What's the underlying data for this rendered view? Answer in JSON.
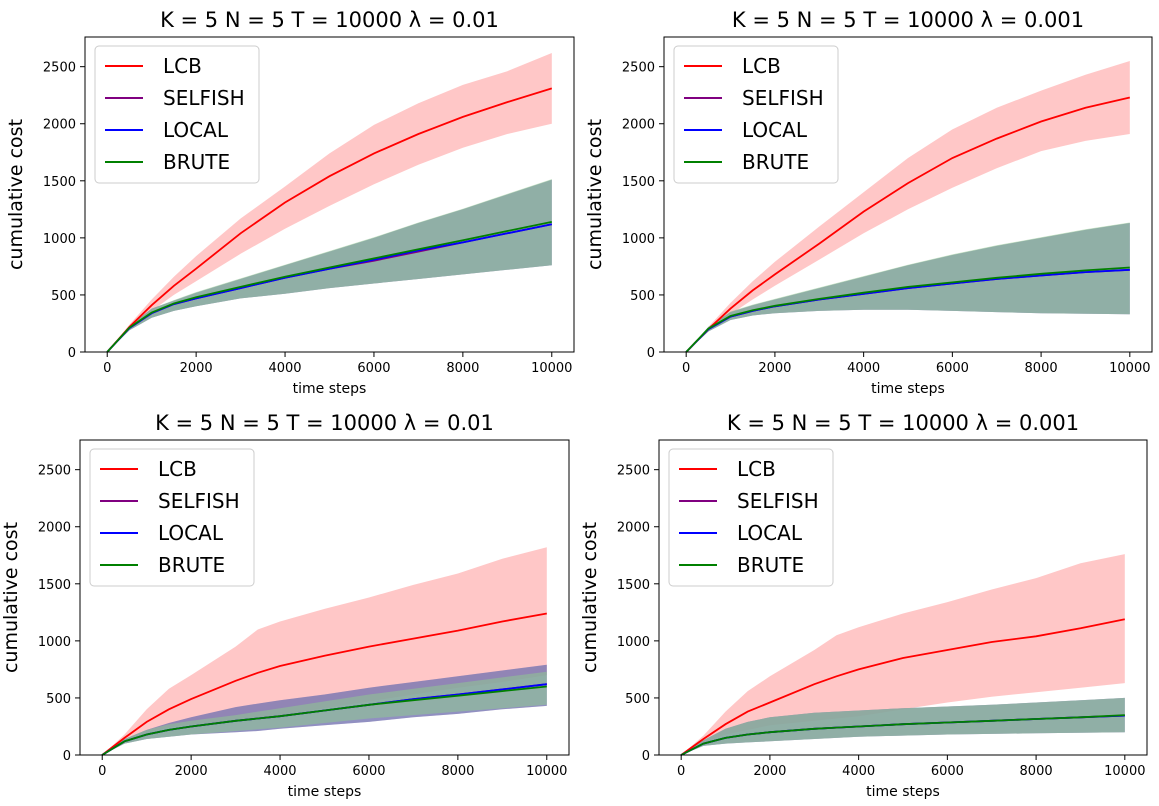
{
  "figure": {
    "background": "#ffffff"
  },
  "series_styles": {
    "LCB": {
      "color": "#ff0000",
      "band": "#ff9999"
    },
    "SELFISH": {
      "color": "#800080",
      "band": "#b48ad6"
    },
    "LOCAL": {
      "color": "#0000ff",
      "band": "#5a6aa0"
    },
    "BRUTE": {
      "color": "#008000",
      "band": "#8fc98f"
    }
  },
  "chart_data": [
    {
      "type": "line",
      "title": "K = 5 N = 5 T = 10000 λ = 0.01",
      "xlabel": "time steps",
      "ylabel": "cumulative cost",
      "xlim": [
        -500,
        10500
      ],
      "ylim": [
        0,
        2760
      ],
      "xticks": [
        0,
        2000,
        4000,
        6000,
        8000,
        10000
      ],
      "yticks": [
        0,
        500,
        1000,
        1500,
        2000,
        2500
      ],
      "legend": "top-left",
      "grid": false,
      "x": [
        0,
        500,
        1000,
        1500,
        2000,
        3000,
        4000,
        5000,
        6000,
        7000,
        8000,
        9000,
        10000
      ],
      "series": [
        {
          "name": "LCB",
          "values": [
            0,
            220,
            410,
            580,
            730,
            1040,
            1310,
            1540,
            1740,
            1910,
            2060,
            2190,
            2310
          ],
          "lower": [
            0,
            200,
            360,
            500,
            620,
            860,
            1080,
            1280,
            1470,
            1640,
            1790,
            1910,
            2000
          ],
          "upper": [
            0,
            240,
            460,
            660,
            840,
            1170,
            1450,
            1740,
            1990,
            2180,
            2340,
            2460,
            2620
          ]
        },
        {
          "name": "SELFISH",
          "values": [
            0,
            210,
            340,
            420,
            470,
            560,
            650,
            730,
            800,
            880,
            960,
            1040,
            1120
          ],
          "lower": [
            0,
            190,
            300,
            360,
            400,
            470,
            510,
            560,
            600,
            640,
            680,
            720,
            760
          ],
          "upper": [
            0,
            230,
            380,
            450,
            520,
            640,
            760,
            880,
            1000,
            1130,
            1250,
            1380,
            1510
          ]
        },
        {
          "name": "LOCAL",
          "values": [
            0,
            210,
            340,
            420,
            470,
            560,
            650,
            730,
            810,
            890,
            960,
            1040,
            1120
          ],
          "lower": [
            0,
            190,
            300,
            360,
            400,
            470,
            510,
            560,
            600,
            640,
            680,
            720,
            760
          ],
          "upper": [
            0,
            230,
            380,
            450,
            520,
            640,
            760,
            880,
            1000,
            1130,
            1250,
            1380,
            1510
          ]
        },
        {
          "name": "BRUTE",
          "values": [
            0,
            215,
            345,
            425,
            480,
            570,
            660,
            740,
            820,
            900,
            980,
            1060,
            1140
          ],
          "lower": [
            0,
            190,
            300,
            360,
            400,
            470,
            510,
            560,
            600,
            640,
            680,
            720,
            760
          ],
          "upper": [
            0,
            230,
            380,
            455,
            525,
            645,
            765,
            885,
            1005,
            1135,
            1255,
            1385,
            1515
          ]
        }
      ]
    },
    {
      "type": "line",
      "title": "K = 5 N = 5 T = 10000 λ = 0.001",
      "xlabel": "time steps",
      "ylabel": "cumulative cost",
      "xlim": [
        -500,
        10500
      ],
      "ylim": [
        0,
        2760
      ],
      "xticks": [
        0,
        2000,
        4000,
        6000,
        8000,
        10000
      ],
      "yticks": [
        0,
        500,
        1000,
        1500,
        2000,
        2500
      ],
      "legend": "top-left",
      "grid": false,
      "x": [
        0,
        500,
        1000,
        1500,
        2000,
        3000,
        4000,
        5000,
        6000,
        7000,
        8000,
        9000,
        10000
      ],
      "series": [
        {
          "name": "LCB",
          "values": [
            0,
            200,
            380,
            540,
            680,
            950,
            1230,
            1480,
            1700,
            1870,
            2020,
            2140,
            2230
          ],
          "lower": [
            0,
            180,
            330,
            460,
            580,
            810,
            1040,
            1250,
            1440,
            1610,
            1760,
            1850,
            1910
          ],
          "upper": [
            0,
            220,
            430,
            620,
            790,
            1100,
            1400,
            1700,
            1950,
            2140,
            2290,
            2430,
            2550
          ]
        },
        {
          "name": "SELFISH",
          "values": [
            0,
            200,
            310,
            360,
            400,
            460,
            510,
            560,
            600,
            640,
            670,
            700,
            720
          ],
          "lower": [
            0,
            180,
            280,
            320,
            340,
            360,
            370,
            370,
            360,
            350,
            340,
            335,
            330
          ],
          "upper": [
            0,
            220,
            350,
            410,
            460,
            560,
            660,
            760,
            850,
            930,
            1000,
            1070,
            1130
          ]
        },
        {
          "name": "LOCAL",
          "values": [
            0,
            200,
            310,
            360,
            400,
            460,
            510,
            560,
            600,
            640,
            670,
            700,
            720
          ],
          "lower": [
            0,
            180,
            280,
            320,
            340,
            360,
            370,
            370,
            360,
            350,
            340,
            335,
            330
          ],
          "upper": [
            0,
            220,
            350,
            410,
            460,
            560,
            660,
            760,
            850,
            930,
            1000,
            1070,
            1130
          ]
        },
        {
          "name": "BRUTE",
          "values": [
            0,
            205,
            315,
            365,
            405,
            465,
            520,
            570,
            610,
            650,
            685,
            715,
            740
          ],
          "lower": [
            0,
            180,
            280,
            320,
            340,
            360,
            370,
            370,
            360,
            350,
            340,
            335,
            330
          ],
          "upper": [
            0,
            220,
            355,
            415,
            465,
            565,
            665,
            765,
            855,
            935,
            1005,
            1075,
            1135
          ]
        }
      ]
    },
    {
      "type": "line",
      "title": "K = 5 N = 5 T = 10000 λ = 0.01",
      "xlabel": "time steps",
      "ylabel": "cumulative cost",
      "xlim": [
        -500,
        10500
      ],
      "ylim": [
        0,
        2760
      ],
      "xticks": [
        0,
        2000,
        4000,
        6000,
        8000,
        10000
      ],
      "yticks": [
        0,
        500,
        1000,
        1500,
        2000,
        2500
      ],
      "legend": "top-left",
      "grid": false,
      "x": [
        0,
        500,
        1000,
        1500,
        2000,
        3000,
        3500,
        4000,
        5000,
        6000,
        7000,
        8000,
        9000,
        10000
      ],
      "series": [
        {
          "name": "LCB",
          "values": [
            0,
            150,
            290,
            400,
            490,
            650,
            720,
            780,
            870,
            950,
            1020,
            1090,
            1170,
            1240
          ],
          "lower": [
            0,
            120,
            200,
            240,
            270,
            300,
            320,
            350,
            410,
            470,
            530,
            590,
            640,
            700
          ],
          "upper": [
            0,
            180,
            400,
            580,
            700,
            950,
            1100,
            1170,
            1280,
            1380,
            1490,
            1590,
            1720,
            1820
          ]
        },
        {
          "name": "SELFISH",
          "values": [
            0,
            120,
            180,
            220,
            250,
            300,
            320,
            340,
            390,
            440,
            490,
            530,
            575,
            620
          ],
          "lower": [
            0,
            100,
            140,
            160,
            180,
            200,
            210,
            230,
            260,
            290,
            330,
            360,
            400,
            430
          ],
          "upper": [
            0,
            140,
            220,
            280,
            330,
            420,
            450,
            480,
            530,
            590,
            640,
            690,
            740,
            790
          ]
        },
        {
          "name": "LOCAL",
          "values": [
            0,
            120,
            180,
            220,
            250,
            300,
            320,
            340,
            390,
            440,
            490,
            530,
            575,
            620
          ],
          "lower": [
            0,
            100,
            140,
            160,
            180,
            200,
            210,
            230,
            260,
            290,
            330,
            360,
            400,
            430
          ],
          "upper": [
            0,
            140,
            220,
            280,
            330,
            420,
            450,
            480,
            530,
            590,
            640,
            690,
            740,
            790
          ]
        },
        {
          "name": "BRUTE",
          "values": [
            0,
            120,
            180,
            220,
            250,
            300,
            320,
            340,
            390,
            440,
            480,
            520,
            560,
            600
          ],
          "lower": [
            0,
            100,
            140,
            160,
            180,
            210,
            225,
            240,
            280,
            320,
            350,
            380,
            410,
            440
          ],
          "upper": [
            0,
            140,
            220,
            270,
            300,
            350,
            380,
            410,
            470,
            530,
            580,
            630,
            680,
            730
          ]
        }
      ]
    },
    {
      "type": "line",
      "title": "K = 5 N = 5 T = 10000 λ = 0.001",
      "xlabel": "time steps",
      "ylabel": "cumulative cost",
      "xlim": [
        -500,
        10500
      ],
      "ylim": [
        0,
        2760
      ],
      "xticks": [
        0,
        2000,
        4000,
        6000,
        8000,
        10000
      ],
      "yticks": [
        0,
        500,
        1000,
        1500,
        2000,
        2500
      ],
      "legend": "top-left",
      "grid": false,
      "x": [
        0,
        500,
        1000,
        1500,
        2000,
        3000,
        3500,
        4000,
        5000,
        6000,
        7000,
        8000,
        9000,
        10000
      ],
      "series": [
        {
          "name": "LCB",
          "values": [
            0,
            140,
            270,
            380,
            460,
            620,
            690,
            750,
            850,
            920,
            990,
            1040,
            1110,
            1190
          ],
          "lower": [
            0,
            110,
            180,
            220,
            260,
            300,
            320,
            340,
            400,
            460,
            510,
            550,
            590,
            630
          ],
          "upper": [
            0,
            170,
            380,
            560,
            690,
            920,
            1050,
            1120,
            1240,
            1340,
            1450,
            1550,
            1680,
            1760
          ]
        },
        {
          "name": "SELFISH",
          "values": [
            0,
            100,
            150,
            180,
            200,
            230,
            240,
            250,
            270,
            285,
            300,
            315,
            330,
            345
          ],
          "lower": [
            0,
            80,
            100,
            110,
            120,
            140,
            150,
            160,
            170,
            180,
            185,
            190,
            195,
            200
          ],
          "upper": [
            0,
            130,
            230,
            290,
            330,
            370,
            380,
            390,
            410,
            425,
            440,
            460,
            480,
            500
          ]
        },
        {
          "name": "LOCAL",
          "values": [
            0,
            100,
            150,
            180,
            200,
            230,
            240,
            250,
            270,
            285,
            300,
            315,
            330,
            345
          ],
          "lower": [
            0,
            80,
            100,
            110,
            120,
            140,
            150,
            160,
            170,
            180,
            185,
            190,
            195,
            200
          ],
          "upper": [
            0,
            130,
            230,
            290,
            330,
            370,
            380,
            390,
            410,
            425,
            440,
            460,
            480,
            500
          ]
        },
        {
          "name": "BRUTE",
          "values": [
            0,
            100,
            150,
            180,
            200,
            230,
            240,
            250,
            270,
            285,
            300,
            315,
            330,
            350
          ],
          "lower": [
            0,
            80,
            100,
            110,
            120,
            140,
            150,
            160,
            170,
            180,
            185,
            190,
            195,
            200
          ],
          "upper": [
            0,
            130,
            230,
            290,
            330,
            370,
            380,
            390,
            410,
            425,
            440,
            460,
            480,
            500
          ]
        }
      ]
    }
  ]
}
